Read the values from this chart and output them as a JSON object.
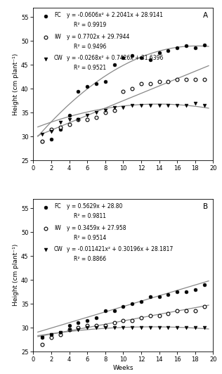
{
  "panel_A": {
    "label": "A",
    "weeks": [
      1,
      2,
      3,
      4,
      5,
      6,
      7,
      8,
      9,
      10,
      11,
      12,
      13,
      14,
      15,
      16,
      17,
      18,
      19
    ],
    "FC": {
      "points": [
        29.0,
        29.5,
        31.5,
        34.5,
        39.5,
        40.5,
        41.0,
        41.5,
        45.0,
        46.5,
        47.0,
        46.5,
        46.0,
        47.5,
        48.0,
        48.5,
        49.0,
        48.5,
        49.2
      ],
      "eq": "y = -0.0606x² + 2.2041x + 28.9141",
      "r2": "R² = 0.9919",
      "a": -0.0606,
      "b": 2.2041,
      "c": 28.9141
    },
    "IW": {
      "points": [
        29.0,
        31.5,
        32.0,
        32.5,
        33.5,
        33.5,
        34.0,
        35.0,
        35.5,
        39.5,
        40.0,
        41.0,
        41.0,
        41.5,
        41.5,
        42.0,
        42.0,
        42.0,
        42.0
      ],
      "eq": "y = 0.7702x + 29.7944",
      "r2": "R² = 0.9496",
      "a": 0.0,
      "b": 0.7702,
      "c": 29.7944
    },
    "CW": {
      "points": [
        30.5,
        31.0,
        33.0,
        33.5,
        33.5,
        34.5,
        35.0,
        35.5,
        36.0,
        36.0,
        36.5,
        36.5,
        36.5,
        36.5,
        36.5,
        36.5,
        36.5,
        37.0,
        36.5
      ],
      "eq": "y = -0.0268x² + 0.7426x + 31.6396",
      "r2": "R² = 0.9521",
      "a": -0.0268,
      "b": 0.7426,
      "c": 31.6396
    },
    "ylim": [
      25,
      57
    ],
    "yticks": [
      25,
      30,
      35,
      40,
      45,
      50,
      55
    ],
    "ylabel": "Height (cm plant⁻¹)"
  },
  "panel_B": {
    "label": "B",
    "weeks": [
      1,
      2,
      3,
      4,
      5,
      6,
      7,
      8,
      9,
      10,
      11,
      12,
      13,
      14,
      15,
      16,
      17,
      18,
      19
    ],
    "FC": {
      "points": [
        28.0,
        28.5,
        29.0,
        30.5,
        31.0,
        31.5,
        32.0,
        33.5,
        33.5,
        34.5,
        35.0,
        35.5,
        36.5,
        36.5,
        37.0,
        37.5,
        37.5,
        38.0,
        39.0
      ],
      "eq": "y = 0.5629x + 28.80",
      "r2": "R² = 0.9811",
      "a": 0.0,
      "b": 0.5629,
      "c": 28.8
    },
    "IW": {
      "points": [
        26.5,
        28.0,
        28.5,
        29.5,
        30.0,
        30.5,
        30.5,
        30.5,
        31.0,
        31.5,
        31.5,
        32.0,
        32.5,
        32.5,
        33.0,
        33.5,
        33.5,
        33.5,
        34.5
      ],
      "eq": "y = 0.3459x + 27.958",
      "r2": "R² = 0.9514",
      "a": 0.0,
      "b": 0.3459,
      "c": 27.958
    },
    "CW": {
      "points": [
        28.0,
        28.5,
        29.0,
        29.5,
        29.5,
        30.0,
        30.0,
        30.0,
        30.0,
        30.0,
        30.0,
        30.0,
        30.0,
        30.0,
        30.0,
        30.0,
        30.0,
        30.0,
        30.0
      ],
      "eq": "y = -0.011421x² + 0.30196x + 28.1817",
      "r2": "R² = 0.8866",
      "a": -0.011421,
      "b": 0.30196,
      "c": 28.1817
    },
    "ylim": [
      25,
      57
    ],
    "yticks": [
      25,
      30,
      35,
      40,
      45,
      50,
      55
    ],
    "ylabel": "Height (cm plant⁻¹)"
  },
  "xlabel": "Weeks",
  "xlim": [
    0,
    20
  ],
  "xticks": [
    0,
    2,
    4,
    6,
    8,
    10,
    12,
    14,
    16,
    18,
    20
  ],
  "line_color": "#888888",
  "marker_size": 3.5,
  "font_size": 6.5,
  "eq_font_size": 5.5,
  "tick_font_size": 6.0
}
